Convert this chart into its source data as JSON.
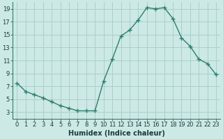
{
  "x": [
    0,
    1,
    2,
    3,
    4,
    5,
    6,
    7,
    8,
    9,
    10,
    11,
    12,
    13,
    14,
    15,
    16,
    17,
    18,
    19,
    20,
    21,
    22,
    23
  ],
  "y": [
    7.5,
    6.2,
    5.7,
    5.2,
    4.6,
    4.0,
    3.6,
    3.2,
    3.2,
    3.2,
    7.8,
    11.2,
    14.8,
    15.7,
    17.3,
    19.2,
    19.0,
    19.2,
    17.5,
    14.5,
    13.2,
    11.2,
    10.5,
    8.8
  ],
  "line_color": "#2e7d6e",
  "marker": "+",
  "marker_size": 4,
  "marker_lw": 1.0,
  "bg_color": "#cce9e5",
  "grid_color": "#aacfcb",
  "spine_color": "#2e7d6e",
  "xlabel": "Humidex (Indice chaleur)",
  "ylim": [
    2,
    20
  ],
  "xlim": [
    -0.5,
    23.5
  ],
  "yticks": [
    3,
    5,
    7,
    9,
    11,
    13,
    15,
    17,
    19
  ],
  "xticks": [
    0,
    1,
    2,
    3,
    4,
    5,
    6,
    7,
    8,
    9,
    10,
    11,
    12,
    13,
    14,
    15,
    16,
    17,
    18,
    19,
    20,
    21,
    22,
    23
  ],
  "font_color": "#1a3a3a",
  "tick_fontsize": 6.0,
  "xlabel_fontsize": 7.0,
  "linewidth": 1.0
}
